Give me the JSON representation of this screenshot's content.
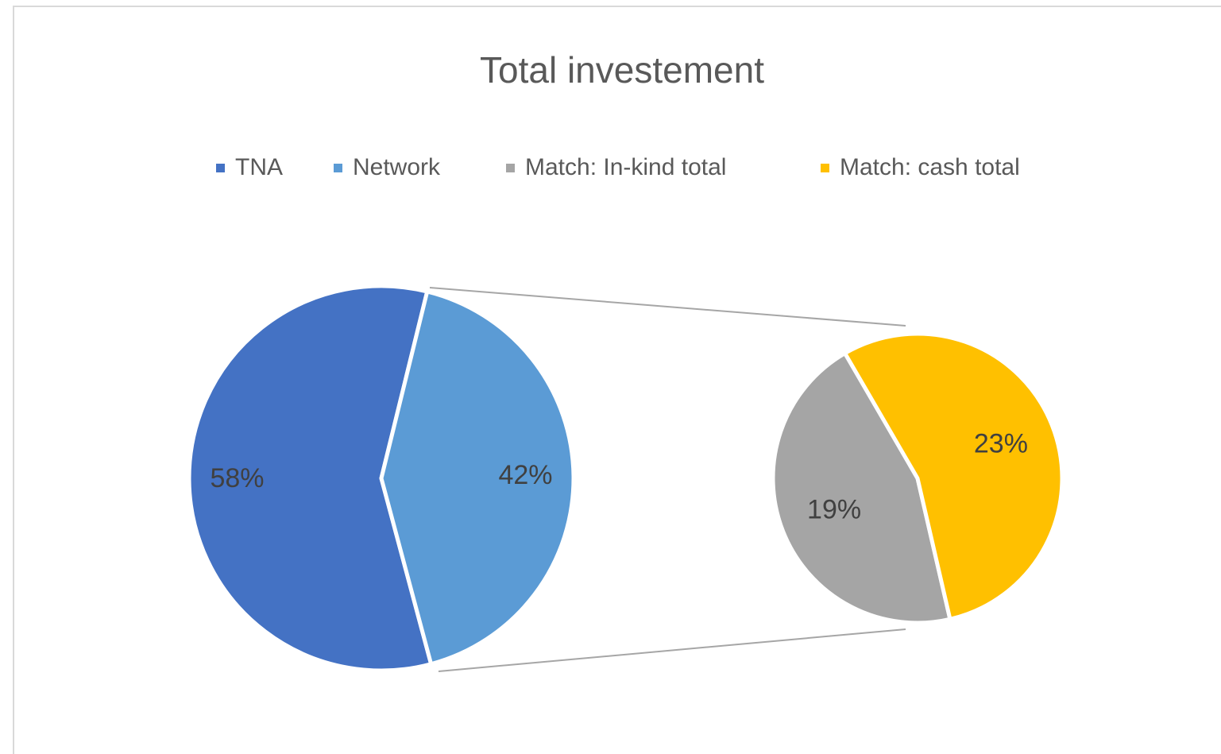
{
  "chart_data": {
    "type": "pie-of-pie",
    "title": "Total investement",
    "categories": [
      "TNA",
      "Network",
      "Match: In-kind total",
      "Match: cash total"
    ],
    "values": [
      58,
      42,
      19,
      23
    ],
    "value_labels": [
      "58%",
      "42%",
      "19%",
      "23%"
    ],
    "colors": [
      "#4472c4",
      "#5b9bd5",
      "#a5a5a5",
      "#ffc000"
    ],
    "legend": "top"
  }
}
